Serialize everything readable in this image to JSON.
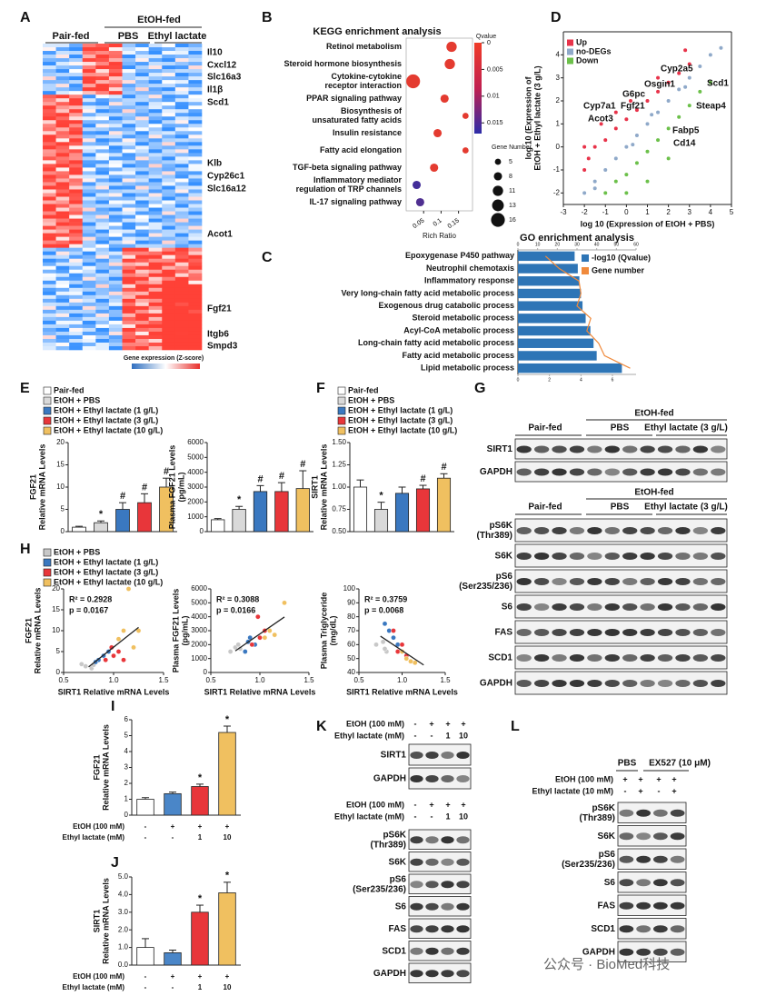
{
  "chart_data": [
    {
      "type": "dot",
      "title": "KEGG enrichment analysis",
      "xlabel": "Rich Ratio",
      "categories": [
        [
          "Retinol metabolism"
        ],
        [
          "Steroid hormone biosynthesis"
        ],
        [
          "Cytokine-cytokine",
          "receptor interaction"
        ],
        [
          "PPAR signaling pathway"
        ],
        [
          "Biosynthesis of",
          "unsaturated fatty acids"
        ],
        [
          "Insulin resistance"
        ],
        [
          "Fatty acid elongation"
        ],
        [
          "TGF-beta signaling pathway"
        ],
        [
          "Inflammatory mediator",
          "regulation of TRP channels"
        ],
        [
          "IL-17 signaling pathway"
        ]
      ],
      "values": [
        0.13,
        0.125,
        0.02,
        0.11,
        0.17,
        0.09,
        0.17,
        0.08,
        0.03,
        0.04
      ],
      "sizes": [
        11,
        11,
        16,
        8,
        5,
        8,
        5,
        8,
        8,
        8
      ],
      "qvalues": [
        0.001,
        0.001,
        0.001,
        0.001,
        0.001,
        0.001,
        0.001,
        0.001,
        0.015,
        0.014
      ],
      "xlim": [
        0,
        0.19
      ],
      "xticks": [
        0.05,
        0.1,
        0.15
      ],
      "color_title": "Qvalue",
      "clim": [
        0,
        0.017
      ],
      "cticks": [
        0,
        0.005,
        0.01,
        0.015
      ],
      "color_low": "#f03c28",
      "color_high": "#2c2ca8",
      "size_title": "Gene Number",
      "size_legend": [
        5,
        8,
        11,
        13,
        16
      ]
    },
    {
      "type": "hbar",
      "title": "GO enrichment analysis",
      "categories": [
        "Epoxygenase P450 pathway",
        "Neutrophil chemotaxis",
        "Inflammatory response",
        "Very long-chain fatty acid metabolic process",
        "Exogenous drug catabolic process",
        "Steroid metabolic process",
        "Acyl-CoA metabolic process",
        "Long-chain fatty acid metabolic process",
        "Fatty acid metabolic process",
        "Lipid metabolic process"
      ],
      "series": [
        {
          "name": "-log10 (Qvalue)",
          "color": "#2e75b6",
          "values": [
            3.6,
            3.8,
            3.9,
            4.0,
            4.1,
            4.3,
            4.6,
            4.8,
            5.0,
            6.6
          ]
        },
        {
          "name": "Gene number",
          "color": "#f08a3c",
          "axis": "x2",
          "values": [
            14,
            21,
            31,
            32,
            30,
            37,
            35,
            41,
            44,
            57
          ]
        }
      ],
      "xlim": [
        0,
        7.5
      ],
      "xticks": [
        0,
        2,
        4,
        6
      ],
      "x2lim": [
        0,
        60
      ],
      "x2ticks": [
        0,
        10,
        20,
        30,
        40,
        50,
        60
      ]
    },
    {
      "type": "scatter",
      "xlabel": "log 10 (Expression of EtOH + PBS)",
      "ylabel": [
        "log 10 (Expression of",
        "EtOH + Ethyl lactate (3 g/L)"
      ],
      "xlim": [
        -3,
        5
      ],
      "xticks": [
        -3,
        -2,
        -1,
        0,
        1,
        2,
        3,
        4,
        5
      ],
      "ylim": [
        -2.5,
        5
      ],
      "yticks": [
        -2,
        -1,
        0,
        1,
        2,
        3,
        4
      ],
      "legend": "upper left",
      "series": [
        {
          "name": "Up",
          "color": "#e8334a",
          "x": [
            -2,
            -1.8,
            -1.5,
            -1,
            -0.5,
            0,
            0.5,
            1,
            1.5,
            2,
            2.5,
            3,
            -2,
            -1.2,
            -0.5,
            0.2,
            1.5,
            2.8
          ],
          "values": [
            -1,
            -0.5,
            0,
            0.3,
            0.8,
            1.2,
            1.6,
            2,
            2.4,
            2.8,
            3.2,
            3.6,
            0,
            1,
            1.5,
            2,
            3,
            4.2
          ]
        },
        {
          "name": "no-DEGs",
          "color": "#8fa9c9",
          "x": [
            -2,
            -1.5,
            -1,
            -0.5,
            0,
            0.5,
            1,
            1.5,
            2,
            2.5,
            3,
            3.5,
            4,
            4.5,
            -1.5,
            0.3,
            1.2,
            2.8
          ],
          "values": [
            -2,
            -1.5,
            -1,
            -0.5,
            0,
            0.5,
            1,
            1.5,
            2,
            2.5,
            3,
            3.5,
            4,
            4.3,
            -1.8,
            0.1,
            1.4,
            2.6
          ]
        },
        {
          "name": "Down",
          "color": "#6cc04a",
          "x": [
            -1,
            -0.5,
            0,
            0.5,
            1,
            1.5,
            2,
            2.5,
            3,
            3.5,
            4,
            0,
            1,
            2
          ],
          "values": [
            -2,
            -1.5,
            -1.2,
            -0.7,
            -0.2,
            0.3,
            0.8,
            1.3,
            1.8,
            2.4,
            2.8,
            -2,
            -1.5,
            -0.5
          ]
        }
      ],
      "annotations": [
        "Cyp2a5",
        "Scd1",
        "Steap4",
        "Osgin1",
        "G6pc",
        "Cyp7a1",
        "Fgf21",
        "Acot3",
        "Fabp5",
        "Cd14"
      ]
    },
    {
      "type": "bar",
      "ylabel": [
        "FGF21",
        "Relative mRNA Levels"
      ],
      "values": [
        1.0,
        2.0,
        5.0,
        6.5,
        10.0
      ],
      "errors": [
        0.2,
        0.4,
        1.5,
        2,
        2
      ],
      "colors": [
        "#ffffff",
        "#d9d9d9",
        "#3a78c0",
        "#e8363a",
        "#f0c060"
      ],
      "annotations": [
        null,
        "*",
        "#",
        "#",
        "#"
      ],
      "ylim": [
        0,
        20
      ],
      "yticks": [
        0,
        5,
        10,
        15,
        20
      ]
    },
    {
      "type": "bar",
      "ylabel": [
        "Plasma FGF21 Levels",
        "(pg/mL)"
      ],
      "values": [
        800,
        1500,
        2700,
        2700,
        2900
      ],
      "errors": [
        80,
        200,
        400,
        600,
        1200
      ],
      "colors": [
        "#ffffff",
        "#d9d9d9",
        "#3a78c0",
        "#e8363a",
        "#f0c060"
      ],
      "annotations": [
        null,
        "*",
        "#",
        "#",
        "#"
      ],
      "ylim": [
        0,
        6000
      ],
      "yticks": [
        0,
        1000,
        2000,
        3000,
        4000,
        5000,
        6000
      ]
    },
    {
      "type": "bar",
      "ylabel": [
        "SIRT1",
        "Relative mRNA Levels"
      ],
      "values": [
        1.0,
        0.75,
        0.93,
        0.98,
        1.1
      ],
      "errors": [
        0.08,
        0.08,
        0.07,
        0.04,
        0.05
      ],
      "colors": [
        "#ffffff",
        "#d9d9d9",
        "#3a78c0",
        "#e8363a",
        "#f0c060"
      ],
      "annotations": [
        null,
        "*",
        null,
        "#",
        "#"
      ],
      "ylim": [
        0.5,
        1.5
      ],
      "yticks": [
        {
          "value": 0.5,
          "label": "0.50"
        },
        {
          "value": 0.75,
          "label": "0.75"
        },
        {
          "value": 1,
          "label": "1.00"
        },
        {
          "value": 1.25,
          "label": "1.25"
        },
        {
          "value": 1.5,
          "label": "1.50"
        }
      ]
    },
    {
      "type": "scatter",
      "fit_line": true,
      "xlabel": "SIRT1 Relative mRNA Levels",
      "ylabel": [
        "FGF21",
        "Relative mRNA Levels"
      ],
      "xlim": [
        0.5,
        1.5
      ],
      "xticks": [
        0.5,
        {
          "value": 1,
          "label": "1.0"
        },
        1.5
      ],
      "ylim": [
        0,
        20
      ],
      "yticks": [
        0,
        5,
        10,
        15,
        20
      ],
      "annotations": [
        "R² = 0.2928",
        "p  = 0.0167"
      ],
      "series": [
        {
          "color": "#c8c8c8",
          "x": [
            0.68,
            0.72,
            0.78,
            0.8
          ],
          "values": [
            2,
            1.5,
            1,
            1.8
          ]
        },
        {
          "color": "#3a78c0",
          "x": [
            0.85,
            0.9,
            0.95,
            0.82
          ],
          "values": [
            3,
            4,
            5,
            2.5
          ]
        },
        {
          "color": "#e8363a",
          "x": [
            0.92,
            1.0,
            1.05,
            0.98,
            1.1
          ],
          "values": [
            3,
            4,
            5,
            6,
            3
          ]
        },
        {
          "color": "#f0c060",
          "x": [
            1.05,
            1.1,
            1.15,
            1.2,
            1.25
          ],
          "values": [
            8,
            10,
            20,
            6,
            10
          ]
        }
      ]
    },
    {
      "type": "scatter",
      "fit_line": true,
      "xlabel": "SIRT1 Relative mRNA Levels",
      "ylabel": [
        "Plasma FGF21 Levels",
        "(pg/mL)"
      ],
      "xlim": [
        0.5,
        1.5
      ],
      "xticks": [
        0.5,
        {
          "value": 1,
          "label": "1.0"
        },
        1.5
      ],
      "ylim": [
        0,
        6000
      ],
      "yticks": [
        0,
        1000,
        2000,
        3000,
        4000,
        5000,
        6000
      ],
      "annotations": [
        "R² = 0.3088",
        "p  = 0.0166"
      ],
      "series": [
        {
          "color": "#c8c8c8",
          "x": [
            0.7,
            0.75,
            0.8,
            0.78
          ],
          "values": [
            1500,
            1800,
            1700,
            2000
          ]
        },
        {
          "color": "#3a78c0",
          "x": [
            0.85,
            0.9,
            0.95,
            0.88
          ],
          "values": [
            1500,
            2500,
            2000,
            2200
          ]
        },
        {
          "color": "#e8363a",
          "x": [
            0.92,
            1.0,
            1.05,
            0.98
          ],
          "values": [
            2000,
            2500,
            3000,
            4000
          ]
        },
        {
          "color": "#f0c060",
          "x": [
            1.05,
            1.1,
            1.15,
            1.25
          ],
          "values": [
            2500,
            3000,
            2700,
            5000
          ]
        }
      ]
    },
    {
      "type": "scatter",
      "fit_line": true,
      "xlabel": "SIRT1 Relative mRNA Levels",
      "ylabel": [
        "Plasma Triglyceride",
        "(mg/dL)"
      ],
      "xlim": [
        0.5,
        1.5
      ],
      "xticks": [
        0.5,
        {
          "value": 1,
          "label": "1.0"
        },
        1.5
      ],
      "ylim": [
        40,
        100
      ],
      "yticks": [
        40,
        50,
        60,
        70,
        80,
        90,
        100
      ],
      "annotations": [
        "R² = 0.3759",
        "p  = 0.0068"
      ],
      "series": [
        {
          "color": "#c8c8c8",
          "x": [
            0.7,
            0.78,
            0.82,
            0.8
          ],
          "values": [
            60,
            62,
            55,
            57
          ]
        },
        {
          "color": "#3a78c0",
          "x": [
            0.8,
            0.85,
            0.9,
            0.95
          ],
          "values": [
            75,
            70,
            65,
            60
          ]
        },
        {
          "color": "#e8363a",
          "x": [
            0.9,
            0.95,
            1.0,
            1.05
          ],
          "values": [
            70,
            55,
            60,
            52
          ]
        },
        {
          "color": "#f0c060",
          "x": [
            1.0,
            1.05,
            1.1,
            1.15
          ],
          "values": [
            55,
            50,
            48,
            47
          ]
        }
      ]
    },
    {
      "type": "bar",
      "ylabel": [
        "FGF21",
        "Relative mRNA Levels"
      ],
      "values": [
        1.0,
        1.35,
        1.8,
        5.2
      ],
      "errors": [
        0.1,
        0.1,
        0.15,
        0.4
      ],
      "colors": [
        "#ffffff",
        "#4a86c8",
        "#e8363a",
        "#f0c060"
      ],
      "annotations": [
        null,
        null,
        "*",
        "*"
      ],
      "ylim": [
        0,
        6
      ],
      "yticks": [
        0,
        1,
        2,
        3,
        4,
        5,
        6
      ],
      "conditions": [
        {
          "label": "EtOH (100 mM)",
          "marks": [
            "-",
            "+",
            "+",
            "+"
          ]
        },
        {
          "label": "Ethyl lactate (mM)",
          "marks": [
            "-",
            "-",
            "1",
            "10"
          ]
        }
      ]
    },
    {
      "type": "bar",
      "ylabel": [
        "SIRT1",
        "Relative mRNA Levels"
      ],
      "values": [
        1.0,
        0.7,
        3.0,
        4.1
      ],
      "errors": [
        0.5,
        0.15,
        0.4,
        0.6
      ],
      "colors": [
        "#ffffff",
        "#4a86c8",
        "#e8363a",
        "#f0c060"
      ],
      "annotations": [
        null,
        null,
        "*",
        "*"
      ],
      "ylim": [
        0,
        5
      ],
      "yticks": [
        {
          "value": 0,
          "label": "0.0"
        },
        {
          "value": 1,
          "label": "1.0"
        },
        {
          "value": 2,
          "label": "2.0"
        },
        {
          "value": 3,
          "label": "3.0"
        },
        {
          "value": 4,
          "label": "4.0"
        },
        {
          "value": 5,
          "label": "5.0"
        }
      ],
      "conditions": [
        {
          "label": "EtOH (100 mM)",
          "marks": [
            "-",
            "+",
            "+",
            "+"
          ]
        },
        {
          "label": "Ethyl lactate (mM)",
          "marks": [
            "-",
            "-",
            "1",
            "10"
          ]
        }
      ]
    }
  ],
  "panels": {
    "letters": [
      "A",
      "B",
      "C",
      "D",
      "E",
      "F",
      "G",
      "H",
      "I",
      "J",
      "K",
      "L"
    ],
    "A": {
      "group_header": "EtOH-fed",
      "columns": [
        "Pair-fed",
        "PBS",
        "Ethyl lactate"
      ],
      "genes": [
        "Il10",
        "Cxcl12",
        "Slc16a3",
        "Il1β",
        "Scd1",
        "Klb",
        "Cyp26c1",
        "Slc16a12",
        "Acot1",
        "Fgf21",
        "Itgb6",
        "Smpd3"
      ],
      "colorbar_title": "Gene expression (Z-score)"
    },
    "E": {
      "legend": [
        "Pair-fed",
        "EtOH + PBS",
        "EtOH + Ethyl lactate (1 g/L)",
        "EtOH + Ethyl lactate (3 g/L)",
        "EtOH + Ethyl lactate (10 g/L)"
      ],
      "legend_colors": [
        "#ffffff",
        "#d9d9d9",
        "#3a78c0",
        "#e8363a",
        "#f0c060"
      ]
    },
    "F": {
      "legend": [
        "Pair-fed",
        "EtOH + PBS",
        "EtOH + Ethyl lactate (1 g/L)",
        "EtOH + Ethyl lactate (3 g/L)",
        "EtOH + Ethyl lactate (10 g/L)"
      ],
      "legend_colors": [
        "#ffffff",
        "#d9d9d9",
        "#3a78c0",
        "#e8363a",
        "#f0c060"
      ]
    },
    "H": {
      "legend": [
        "EtOH + PBS",
        "EtOH + Ethyl lactate (1 g/L)",
        "EtOH + Ethyl lactate (3 g/L)",
        "EtOH + Ethyl lactate (10 g/L)"
      ],
      "legend_colors": [
        "#c8c8c8",
        "#3a78c0",
        "#e8363a",
        "#f0c060"
      ]
    },
    "G": {
      "header": "EtOH-fed",
      "groups": [
        "Pair-fed",
        "PBS",
        "Ethyl lactate (3 g/L)"
      ],
      "blot1": [
        [
          "SIRT1"
        ],
        [
          "GAPDH"
        ]
      ],
      "blot2": [
        [
          "pS6K",
          "(Thr389)"
        ],
        [
          "S6K"
        ],
        [
          "pS6",
          "(Ser235/236)"
        ],
        [
          "S6"
        ],
        [
          "FAS"
        ],
        [
          "SCD1"
        ],
        [
          "GAPDH"
        ]
      ]
    },
    "K": {
      "conditions1": [
        {
          "label": "EtOH (100 mM)",
          "marks": [
            "-",
            "+",
            "+",
            "+"
          ]
        },
        {
          "label": "Ethyl lactate (mM)",
          "marks": [
            "-",
            "-",
            "1",
            "10"
          ]
        }
      ],
      "blot1": [
        [
          "SIRT1"
        ],
        [
          "GAPDH"
        ]
      ],
      "conditions2": [
        {
          "label": "EtOH (100 mM)",
          "marks": [
            "-",
            "+",
            "+",
            "+"
          ]
        },
        {
          "label": "Ethyl lactate (mM)",
          "marks": [
            "-",
            "-",
            "1",
            "10"
          ]
        }
      ],
      "blot2": [
        [
          "pS6K",
          "(Thr389)"
        ],
        [
          "S6K"
        ],
        [
          "pS6",
          "(Ser235/236)"
        ],
        [
          "S6"
        ],
        [
          "FAS"
        ],
        [
          "SCD1"
        ],
        [
          "GAPDH"
        ]
      ]
    },
    "L": {
      "groups": [
        "PBS",
        "EX527 (10 μM)"
      ],
      "conditions": [
        {
          "label": "EtOH (100 mM)",
          "marks": [
            "+",
            "+",
            "+",
            "+"
          ]
        },
        {
          "label": "Ethyl lactate (10 mM)",
          "marks": [
            "-",
            "+",
            "-",
            "+"
          ]
        }
      ],
      "blot": [
        [
          "pS6K",
          "(Thr389)"
        ],
        [
          "S6K"
        ],
        [
          "pS6",
          "(Ser235/236)"
        ],
        [
          "S6"
        ],
        [
          "FAS"
        ],
        [
          "SCD1"
        ],
        [
          "GAPDH"
        ]
      ]
    },
    "watermark": "公众号 · BioMed科技"
  }
}
